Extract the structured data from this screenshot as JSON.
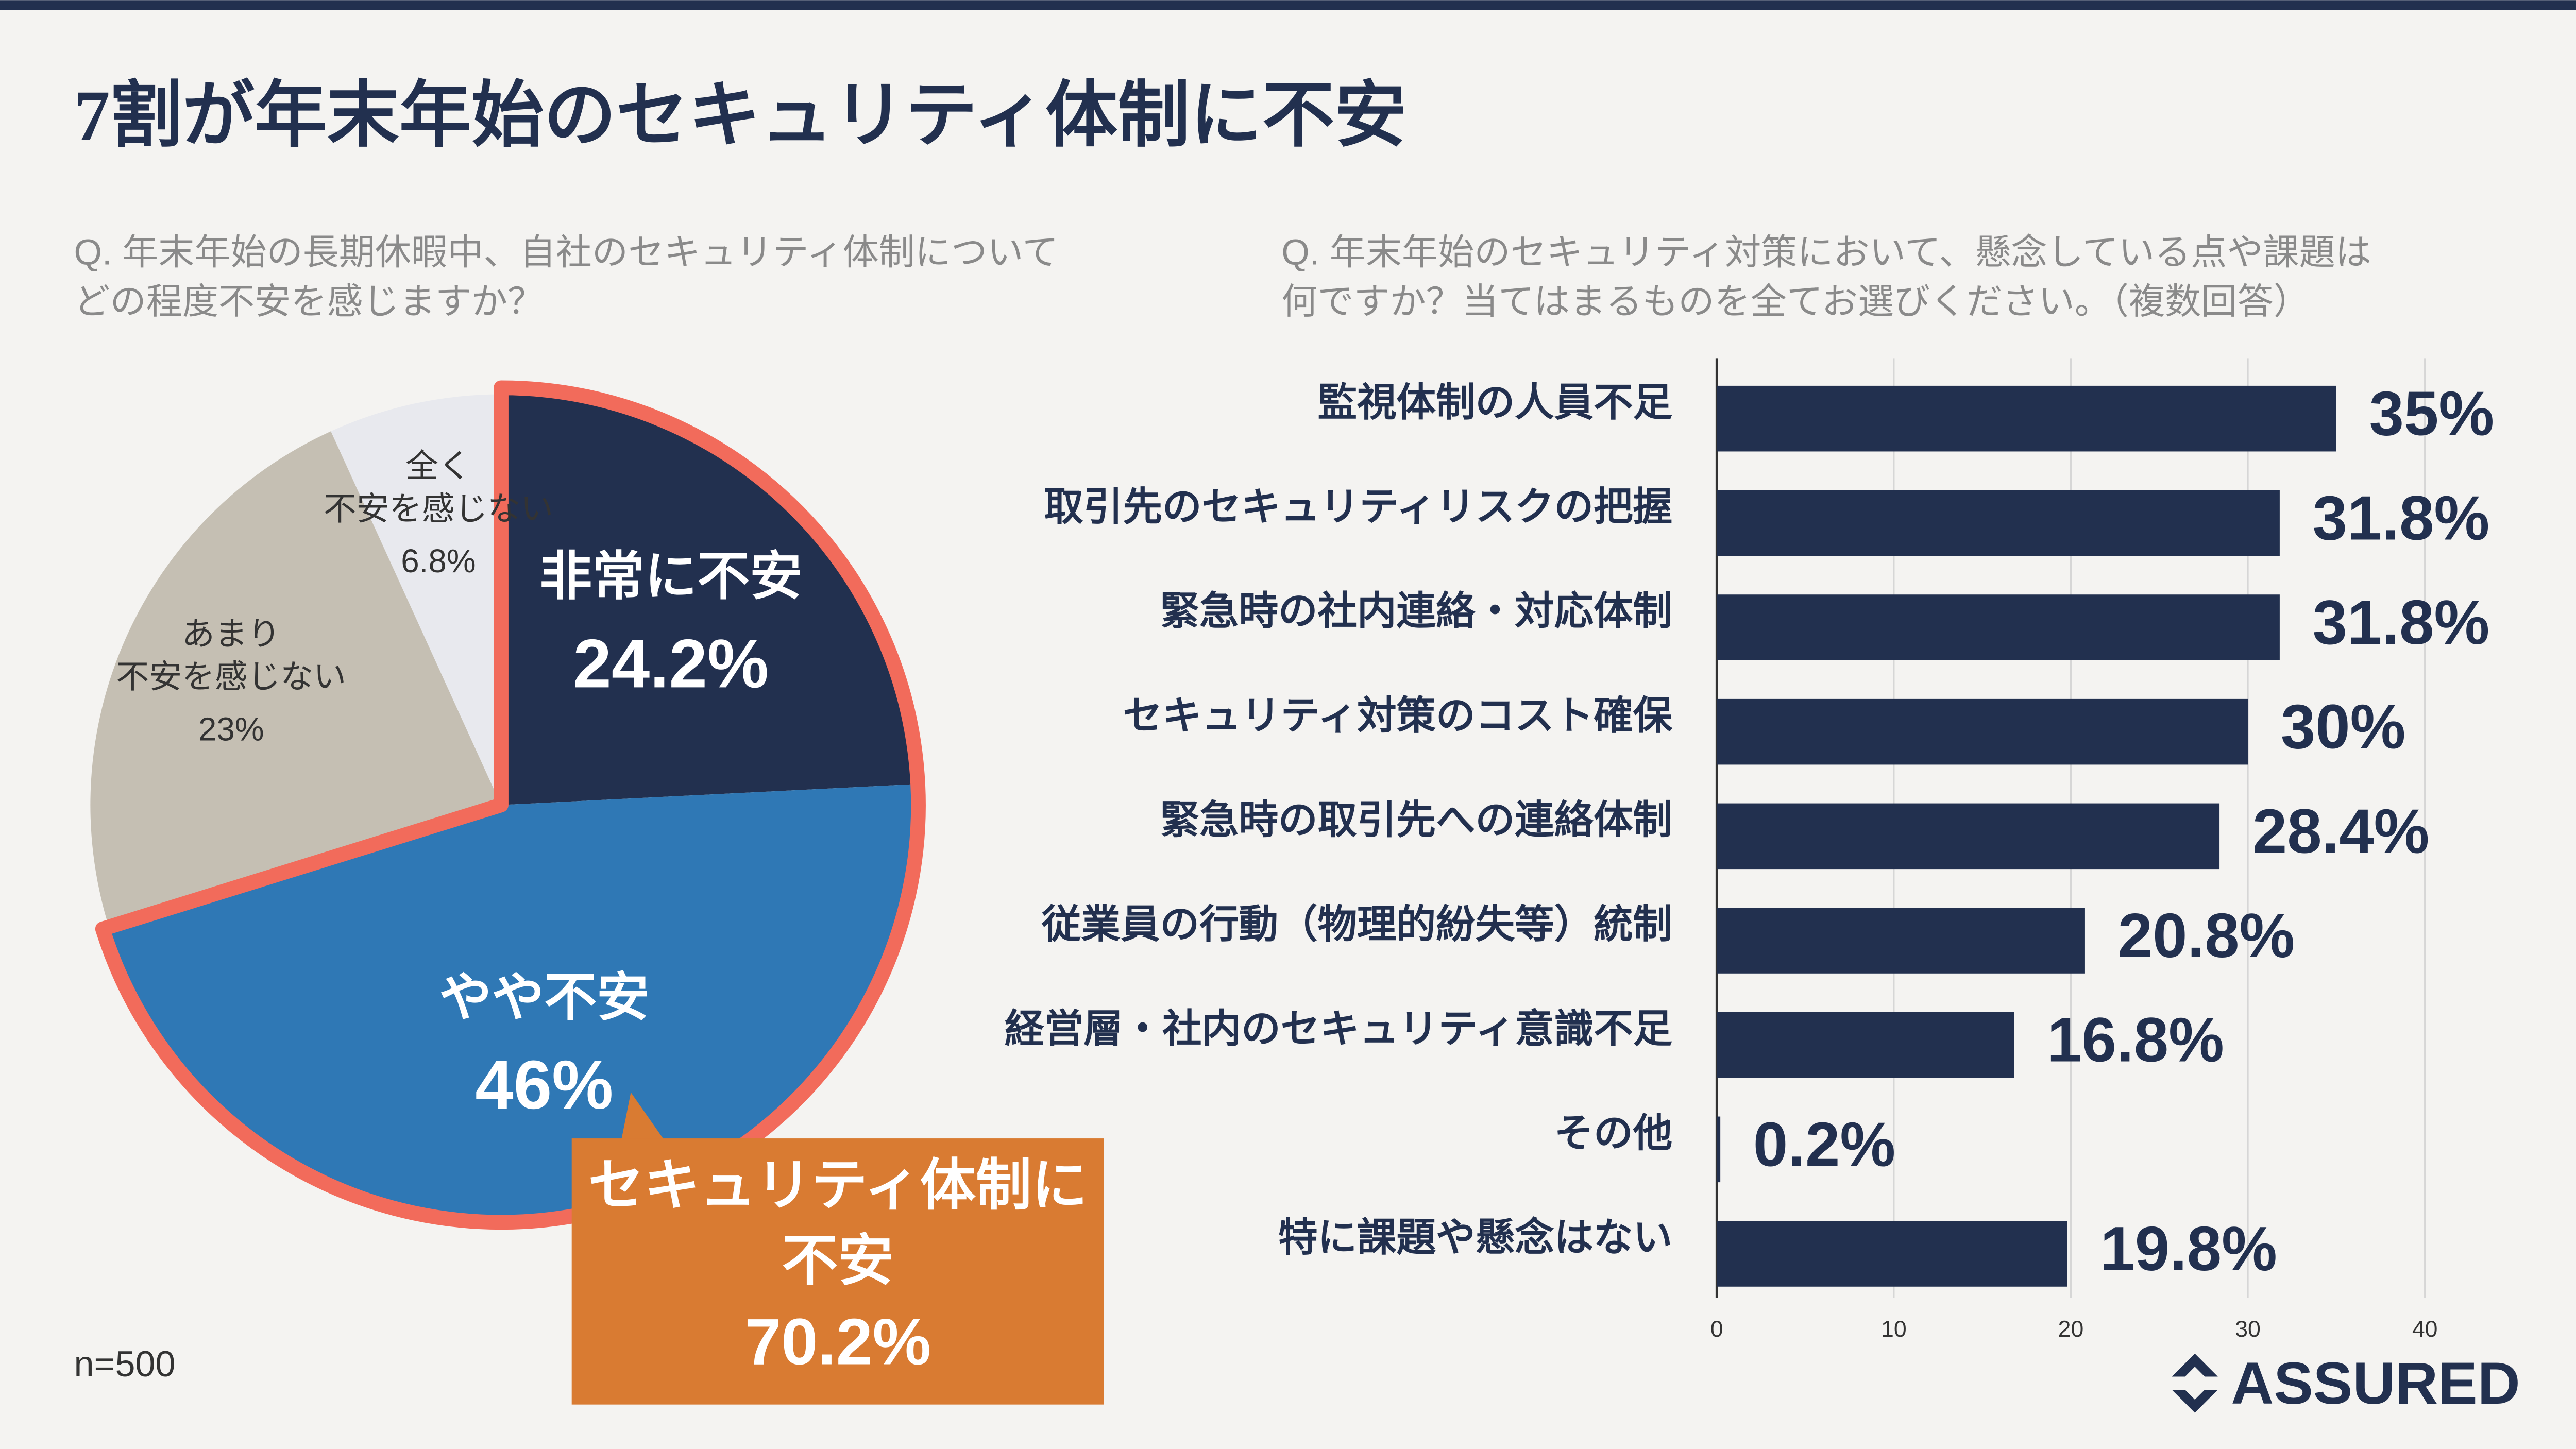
{
  "title": "7割が年末年始のセキュリティ体制に不安",
  "note": "n=500",
  "logo": "ASSURED",
  "chart_data": [
    {
      "type": "pie",
      "subtitle": "Q. 年末年始の長期休暇中、自社のセキュリティ体制について\nどの程度不安を感じますか？",
      "categories": [
        "非常に不安",
        "やや不安",
        "あまり\n不安を感じない",
        "全く\n不安を感じない"
      ],
      "values": [
        24.2,
        46,
        23,
        6.8
      ],
      "value_labels": [
        "24.2%",
        "46%",
        "23%",
        "6.8%"
      ],
      "colors": [
        "#22304f",
        "#2f78b5",
        "#c5bfb3",
        "#e8e9ee"
      ],
      "annotation": {
        "text": "セキュリティ体制に\n不安",
        "value": 70.2,
        "label": "70.2%",
        "color": "#d97b32",
        "outline": "#f26b5b"
      }
    },
    {
      "type": "bar",
      "subtitle": "Q. 年末年始のセキュリティ対策において、懸念している点や課題は\n何ですか？当てはまるものを全てお選びください。（複数回答）",
      "categories": [
        "監視体制の人員不足",
        "取引先のセキュリティリスクの把握",
        "緊急時の社内連絡・対応体制",
        "セキュリティ対策のコスト確保",
        "緊急時の取引先への連絡体制",
        "従業員の行動（物理的紛失等）統制",
        "経営層・社内のセキュリティ意識不足",
        "その他",
        "特に課題や懸念はない"
      ],
      "values": [
        35,
        31.8,
        31.8,
        30,
        28.4,
        20.8,
        16.8,
        0.2,
        19.8
      ],
      "value_labels": [
        "35%",
        "31.8%",
        "31.8%",
        "30%",
        "28.4%",
        "20.8%",
        "16.8%",
        "0.2%",
        "19.8%"
      ],
      "color": "#22304f",
      "xlim": [
        0,
        40
      ],
      "xticks": [
        0,
        10,
        20,
        30,
        40
      ],
      "grid": true
    }
  ]
}
